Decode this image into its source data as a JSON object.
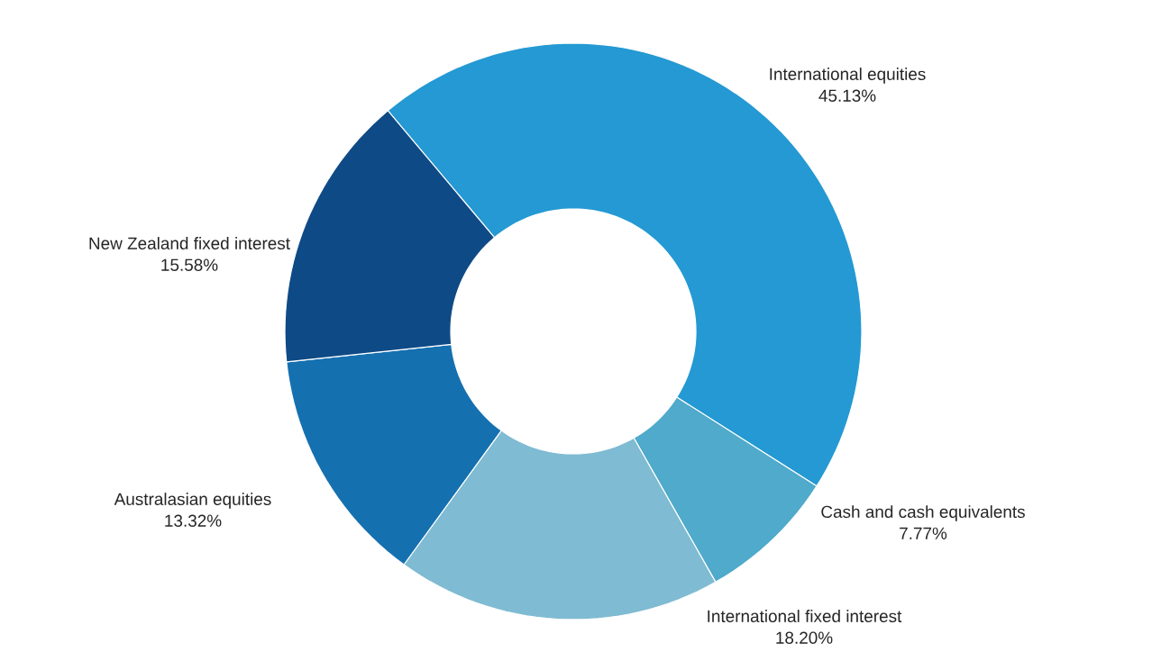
{
  "chart_data": {
    "type": "donut",
    "categories": [
      "International equities",
      "Cash and cash equivalents",
      "International fixed interest",
      "Australasian equities",
      "New Zealand fixed interest"
    ],
    "values": [
      45.13,
      7.77,
      18.2,
      13.32,
      15.58
    ],
    "colors": [
      "#2499d3",
      "#4faacb",
      "#7fbbd2",
      "#1570b0",
      "#0e4a86"
    ],
    "value_labels": [
      "45.13%",
      "7.77%",
      "18.20%",
      "13.32%",
      "15.58%"
    ]
  }
}
